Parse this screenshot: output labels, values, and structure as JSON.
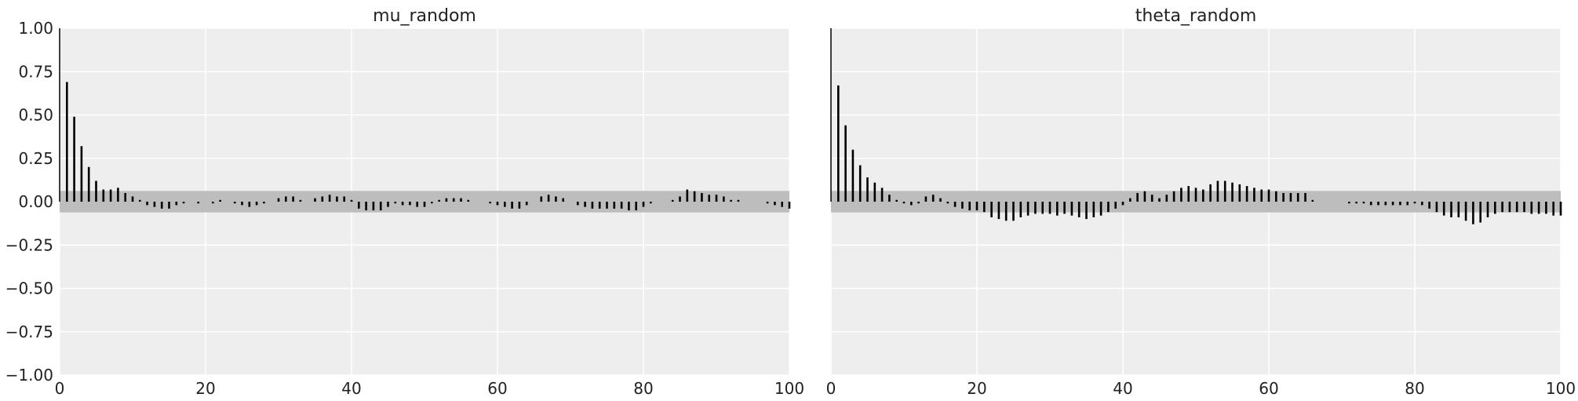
{
  "chart_data": [
    {
      "type": "bar",
      "title": "mu_random",
      "xlabel": "",
      "ylabel": "",
      "xlim": [
        0,
        100
      ],
      "ylim": [
        -1.0,
        1.0
      ],
      "x_ticks": [
        0,
        20,
        40,
        60,
        80,
        100
      ],
      "y_ticks": [
        1.0,
        0.75,
        0.5,
        0.25,
        0.0,
        -0.25,
        -0.5,
        -0.75,
        -1.0
      ],
      "x_tick_labels": [
        "0",
        "20",
        "40",
        "60",
        "80",
        "100"
      ],
      "y_tick_labels": [
        "1.00",
        "0.75",
        "0.50",
        "0.25",
        "0.00",
        "−0.25",
        "−0.50",
        "−0.75",
        "−1.00"
      ],
      "confidence_band": 0.062,
      "grid": true,
      "series": [
        {
          "values": [
            1.0,
            0.69,
            0.49,
            0.32,
            0.2,
            0.12,
            0.07,
            0.07,
            0.08,
            0.05,
            0.03,
            0.01,
            -0.02,
            -0.03,
            -0.04,
            -0.04,
            -0.02,
            -0.01,
            0.0,
            -0.01,
            0.0,
            -0.01,
            0.01,
            0.0,
            -0.01,
            -0.02,
            -0.03,
            -0.02,
            -0.01,
            0.0,
            0.02,
            0.03,
            0.03,
            0.01,
            0.0,
            0.02,
            0.03,
            0.04,
            0.03,
            0.03,
            0.01,
            -0.04,
            -0.05,
            -0.05,
            -0.05,
            -0.03,
            -0.01,
            -0.02,
            -0.02,
            -0.03,
            -0.03,
            -0.01,
            0.01,
            0.02,
            0.02,
            0.02,
            0.01,
            0.0,
            0.0,
            -0.01,
            -0.02,
            -0.03,
            -0.04,
            -0.04,
            -0.02,
            0.0,
            0.03,
            0.04,
            0.03,
            0.02,
            0.0,
            -0.02,
            -0.03,
            -0.04,
            -0.04,
            -0.04,
            -0.04,
            -0.04,
            -0.05,
            -0.05,
            -0.03,
            -0.01,
            0.0,
            0.0,
            0.01,
            0.03,
            0.07,
            0.06,
            0.05,
            0.04,
            0.04,
            0.03,
            0.01,
            0.01,
            0.0,
            0.0,
            0.0,
            -0.01,
            -0.02,
            -0.03,
            -0.04
          ]
        }
      ]
    },
    {
      "type": "bar",
      "title": "theta_random",
      "xlabel": "",
      "ylabel": "",
      "xlim": [
        0,
        100
      ],
      "ylim": [
        -1.0,
        1.0
      ],
      "x_ticks": [
        0,
        20,
        40,
        60,
        80,
        100
      ],
      "x_tick_labels": [
        "0",
        "20",
        "40",
        "60",
        "80",
        "100"
      ],
      "confidence_band": 0.062,
      "grid": true,
      "series": [
        {
          "values": [
            1.0,
            0.67,
            0.44,
            0.3,
            0.21,
            0.14,
            0.11,
            0.08,
            0.04,
            0.01,
            -0.01,
            -0.02,
            -0.01,
            0.03,
            0.04,
            0.02,
            -0.01,
            -0.03,
            -0.04,
            -0.05,
            -0.05,
            -0.06,
            -0.09,
            -0.1,
            -0.11,
            -0.11,
            -0.09,
            -0.08,
            -0.07,
            -0.07,
            -0.07,
            -0.08,
            -0.07,
            -0.08,
            -0.09,
            -0.1,
            -0.09,
            -0.08,
            -0.06,
            -0.04,
            -0.02,
            0.02,
            0.05,
            0.06,
            0.04,
            0.02,
            0.04,
            0.06,
            0.08,
            0.09,
            0.08,
            0.07,
            0.1,
            0.12,
            0.12,
            0.11,
            0.1,
            0.09,
            0.08,
            0.07,
            0.07,
            0.06,
            0.05,
            0.05,
            0.05,
            0.05,
            0.01,
            0.0,
            0.0,
            0.0,
            0.0,
            -0.01,
            -0.01,
            -0.01,
            -0.02,
            -0.02,
            -0.02,
            -0.02,
            -0.02,
            -0.02,
            -0.01,
            -0.02,
            -0.04,
            -0.06,
            -0.08,
            -0.09,
            -0.09,
            -0.11,
            -0.13,
            -0.12,
            -0.09,
            -0.07,
            -0.06,
            -0.06,
            -0.06,
            -0.06,
            -0.07,
            -0.07,
            -0.07,
            -0.08,
            -0.08
          ]
        }
      ]
    }
  ]
}
